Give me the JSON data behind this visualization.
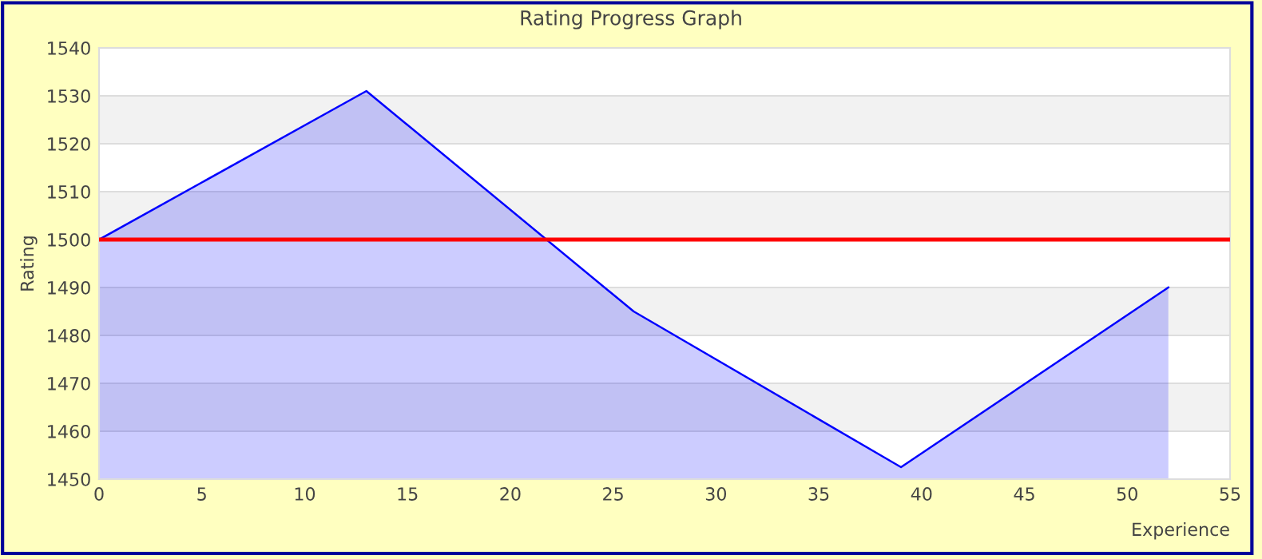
{
  "chart_data": {
    "type": "area",
    "title": "Rating Progress Graph",
    "xlabel": "Experience",
    "ylabel": "Rating",
    "x": [
      0,
      13,
      26,
      39,
      52
    ],
    "series": [
      {
        "color": "#0000ff",
        "values": [
          1500,
          1531,
          1485,
          1452.5,
          1490
        ]
      }
    ],
    "xlim": [
      0,
      55
    ],
    "xticks": [
      0,
      5,
      10,
      15,
      20,
      25,
      30,
      35,
      40,
      45,
      50,
      55
    ],
    "ylim": [
      1450,
      1540
    ],
    "yticks": [
      1450,
      1460,
      1470,
      1480,
      1490,
      1500,
      1510,
      1520,
      1530,
      1540
    ],
    "ref_lines": [
      {
        "axis": "y",
        "value": 1500,
        "color": "#ff0000"
      }
    ],
    "grid": "y",
    "legend": false
  }
}
